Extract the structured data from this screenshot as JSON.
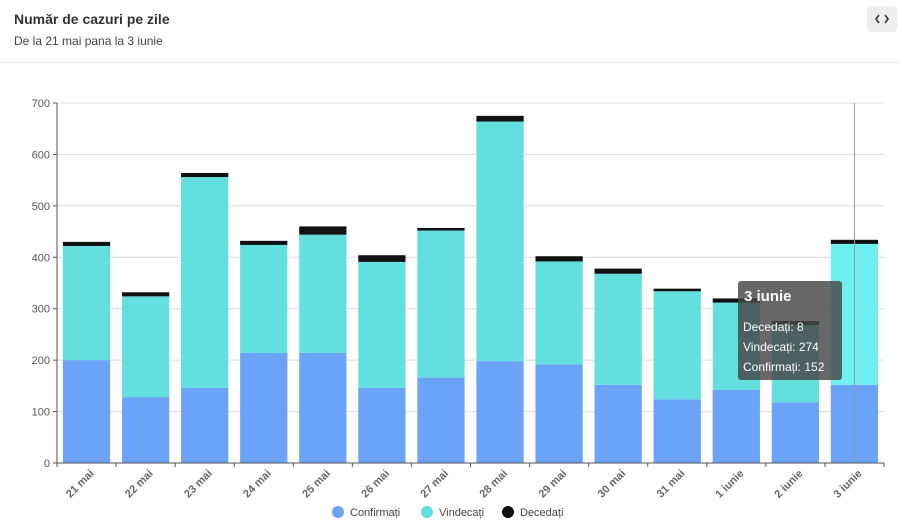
{
  "header": {
    "title": "Număr de cazuri pe zile",
    "subtitle": "De la 21 mai pana la 3 iunie",
    "code_icon": "code-icon"
  },
  "chart_data": {
    "type": "bar",
    "stacked": true,
    "categories": [
      "21 mai",
      "22 mai",
      "23 mai",
      "24 mai",
      "25 mai",
      "26 mai",
      "27 mai",
      "28 mai",
      "29 mai",
      "30 mai",
      "31 mai",
      "1 iunie",
      "2 iunie",
      "3 iunie"
    ],
    "series": [
      {
        "name": "Confirmați",
        "color": "#6aa3f8",
        "values": [
          200,
          128,
          146,
          214,
          214,
          146,
          166,
          198,
          192,
          152,
          124,
          142,
          118,
          152
        ]
      },
      {
        "name": "Vindecați",
        "color": "#63dfdf",
        "highlight_color": "#6ef0f0",
        "values": [
          222,
          196,
          410,
          210,
          230,
          245,
          286,
          466,
          200,
          216,
          210,
          170,
          150,
          274
        ]
      },
      {
        "name": "Decedați",
        "color": "#111111",
        "values": [
          8,
          8,
          8,
          8,
          16,
          13,
          5,
          11,
          10,
          10,
          5,
          8,
          8,
          8
        ]
      }
    ],
    "ylim": [
      0,
      700
    ],
    "yticks": [
      0,
      100,
      200,
      300,
      400,
      500,
      600,
      700
    ],
    "grid": true,
    "legend": "bottom-center",
    "tooltip": {
      "category": "3 iunie",
      "lines": [
        "Decedați: 8",
        "Vindecați: 274",
        "Confirmați: 152"
      ]
    },
    "highlight_category": "3 iunie"
  }
}
